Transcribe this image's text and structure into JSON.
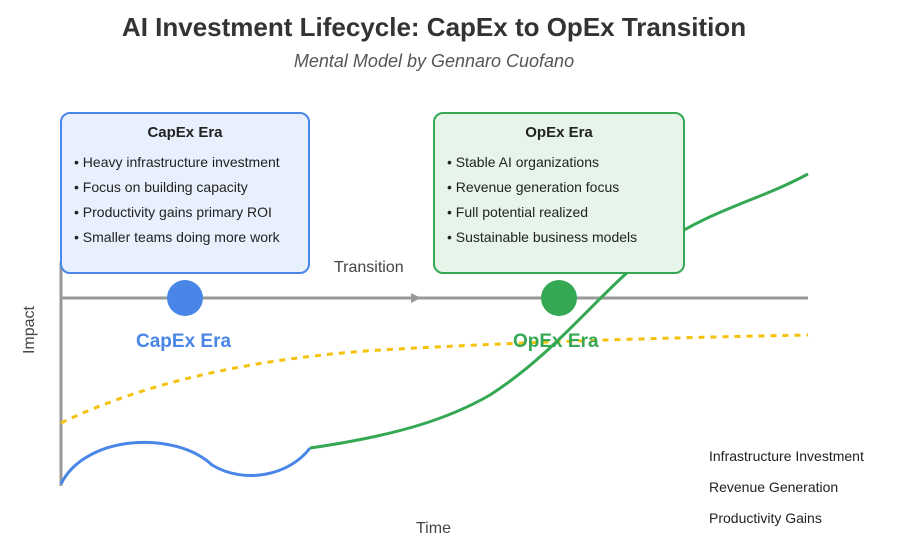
{
  "title": "AI Investment Lifecycle: CapEx to OpEx Transition",
  "subtitle": "Mental Model by Gennaro Cuofano",
  "capex_box": {
    "title": "CapEx Era",
    "items": [
      "Heavy infrastructure investment",
      "Focus on building capacity",
      "Productivity gains primary ROI",
      "Smaller teams doing more work"
    ]
  },
  "opex_box": {
    "title": "OpEx Era",
    "items": [
      "Stable AI organizations",
      "Revenue generation focus",
      "Full potential realized",
      "Sustainable business models"
    ]
  },
  "timeline": {
    "transition_label": "Transition",
    "capex_label": "CapEx Era",
    "opex_label": "OpEx Era"
  },
  "axes": {
    "y_label": "Impact",
    "x_label": "Time"
  },
  "legend": [
    "Infrastructure Investment",
    "Revenue Generation",
    "Productivity Gains"
  ],
  "colors": {
    "capex": "#4a86e8",
    "opex": "#34a853",
    "productivity": "#f4c20d",
    "axis": "#999999"
  }
}
